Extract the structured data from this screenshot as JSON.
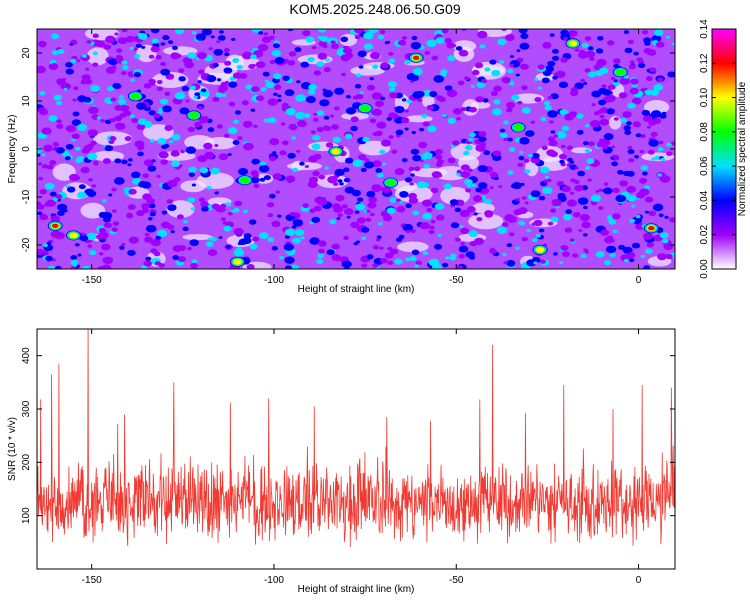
{
  "chart_data": [
    {
      "type": "heatmap",
      "title": "KOM5.2025.248.06.50.G09",
      "xlabel": "Height of straight line (km)",
      "ylabel": "Frequency (Hz)",
      "xlim": [
        -165,
        10
      ],
      "ylim": [
        -25,
        25
      ],
      "xticks": [
        -150,
        -100,
        -50,
        0
      ],
      "yticks": [
        -20,
        -10,
        0,
        10,
        20
      ],
      "colorbar": {
        "label": "Normalized spectral amplitude",
        "range": [
          0.0,
          0.14
        ],
        "ticks": [
          "0.00",
          "0.02",
          "0.04",
          "0.06",
          "0.08",
          "0.10",
          "0.12",
          "0.14"
        ],
        "colormap": [
          "#ffffff",
          "#a000ff",
          "#0000ff",
          "#00e0ff",
          "#00ff00",
          "#ffff00",
          "#ff0000",
          "#ff00ff"
        ]
      },
      "peaks": [
        {
          "x": -61.0,
          "y": 19.0,
          "z": 0.13
        },
        {
          "x": -160.0,
          "y": -16.0,
          "z": 0.12
        },
        {
          "x": 3.5,
          "y": -16.5,
          "z": 0.12
        },
        {
          "x": -110.0,
          "y": -23.5,
          "z": 0.11
        },
        {
          "x": -83.0,
          "y": -0.5,
          "z": 0.11
        },
        {
          "x": -18.0,
          "y": 22.0,
          "z": 0.1
        },
        {
          "x": -155.0,
          "y": -18.0,
          "z": 0.1
        },
        {
          "x": -27.0,
          "y": -21.0,
          "z": 0.1
        },
        {
          "x": -5.0,
          "y": 16.0,
          "z": 0.09
        },
        {
          "x": -122.0,
          "y": 7.0,
          "z": 0.09
        },
        {
          "x": -68.0,
          "y": -7.0,
          "z": 0.09
        },
        {
          "x": -108.0,
          "y": -6.5,
          "z": 0.09
        },
        {
          "x": -75.0,
          "y": 8.5,
          "z": 0.09
        },
        {
          "x": -33.0,
          "y": 4.5,
          "z": 0.08
        },
        {
          "x": -138.0,
          "y": 11.0,
          "z": 0.08
        }
      ]
    },
    {
      "type": "line",
      "xlabel": "Height of straight line (km)",
      "ylabel": "SNR (10 * v/v)",
      "xlim": [
        -165,
        10
      ],
      "ylim": [
        0,
        450
      ],
      "xticks": [
        -150,
        -100,
        -50,
        0
      ],
      "yticks": [
        100,
        200,
        300,
        400
      ],
      "color": "#f03a32",
      "baseline_range": [
        40,
        210
      ],
      "n_points": 1400,
      "spikes": [
        {
          "x": -151.0,
          "y": 450
        },
        {
          "x": -40.0,
          "y": 420
        },
        {
          "x": -159.0,
          "y": 385
        },
        {
          "x": -161.0,
          "y": 365
        },
        {
          "x": -127.5,
          "y": 350
        },
        {
          "x": 1.0,
          "y": 345
        },
        {
          "x": -20.5,
          "y": 345
        },
        {
          "x": 9.0,
          "y": 340
        },
        {
          "x": -101.5,
          "y": 320
        },
        {
          "x": -43.5,
          "y": 318
        },
        {
          "x": -112.0,
          "y": 312
        },
        {
          "x": -164.0,
          "y": 318
        },
        {
          "x": -89.0,
          "y": 305
        },
        {
          "x": -7.0,
          "y": 300
        },
        {
          "x": -141.0,
          "y": 290
        },
        {
          "x": -69.0,
          "y": 285
        },
        {
          "x": -31.0,
          "y": 292
        },
        {
          "x": -57.0,
          "y": 278
        }
      ]
    }
  ]
}
